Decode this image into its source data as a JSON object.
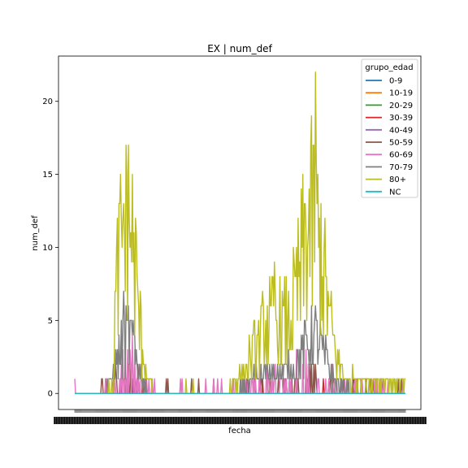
{
  "chart_data": {
    "type": "line",
    "title": "EX | num_def",
    "xlabel": "fecha",
    "ylabel": "num_def",
    "ylim": [
      -1.1,
      23.1
    ],
    "yticks": [
      0,
      5,
      10,
      15,
      20
    ],
    "n_dates": 420,
    "x_ticks": "dense, overlapping date labels",
    "legend": {
      "title": "grupo_edad",
      "position": "top-right",
      "entries": [
        "0-9",
        "10-19",
        "20-29",
        "30-39",
        "40-49",
        "50-59",
        "60-69",
        "70-79",
        "80+",
        "NC"
      ]
    },
    "series": [
      {
        "name": "0-9",
        "color": "#1f77b4",
        "pattern": "zeros"
      },
      {
        "name": "10-19",
        "color": "#ff7f0e",
        "pattern": "zeros"
      },
      {
        "name": "20-29",
        "color": "#2ca02c",
        "pattern": "zeros"
      },
      {
        "name": "30-39",
        "color": "#d62728",
        "pattern": "rare",
        "max": 1
      },
      {
        "name": "40-49",
        "color": "#9467bd",
        "pattern": "rare",
        "max": 1
      },
      {
        "name": "50-59",
        "color": "#8c564b",
        "pattern": "low",
        "max": 2
      },
      {
        "name": "60-69",
        "color": "#e377c2",
        "pattern": "low",
        "max": 4
      },
      {
        "name": "70-79",
        "color": "#7f7f7f",
        "pattern": "wave",
        "max": 7
      },
      {
        "name": "80+",
        "color": "#bcbd22",
        "pattern": "wave",
        "max": 22
      },
      {
        "name": "NC",
        "color": "#17becf",
        "pattern": "zeros"
      }
    ],
    "peaks": {
      "80+": [
        {
          "date_index": 65,
          "value": 17
        },
        {
          "date_index": 253,
          "value": 9
        },
        {
          "date_index": 305,
          "value": 22
        }
      ],
      "70-79": [
        {
          "date_index": 62,
          "value": 7
        },
        {
          "date_index": 305,
          "value": 6
        }
      ]
    }
  }
}
